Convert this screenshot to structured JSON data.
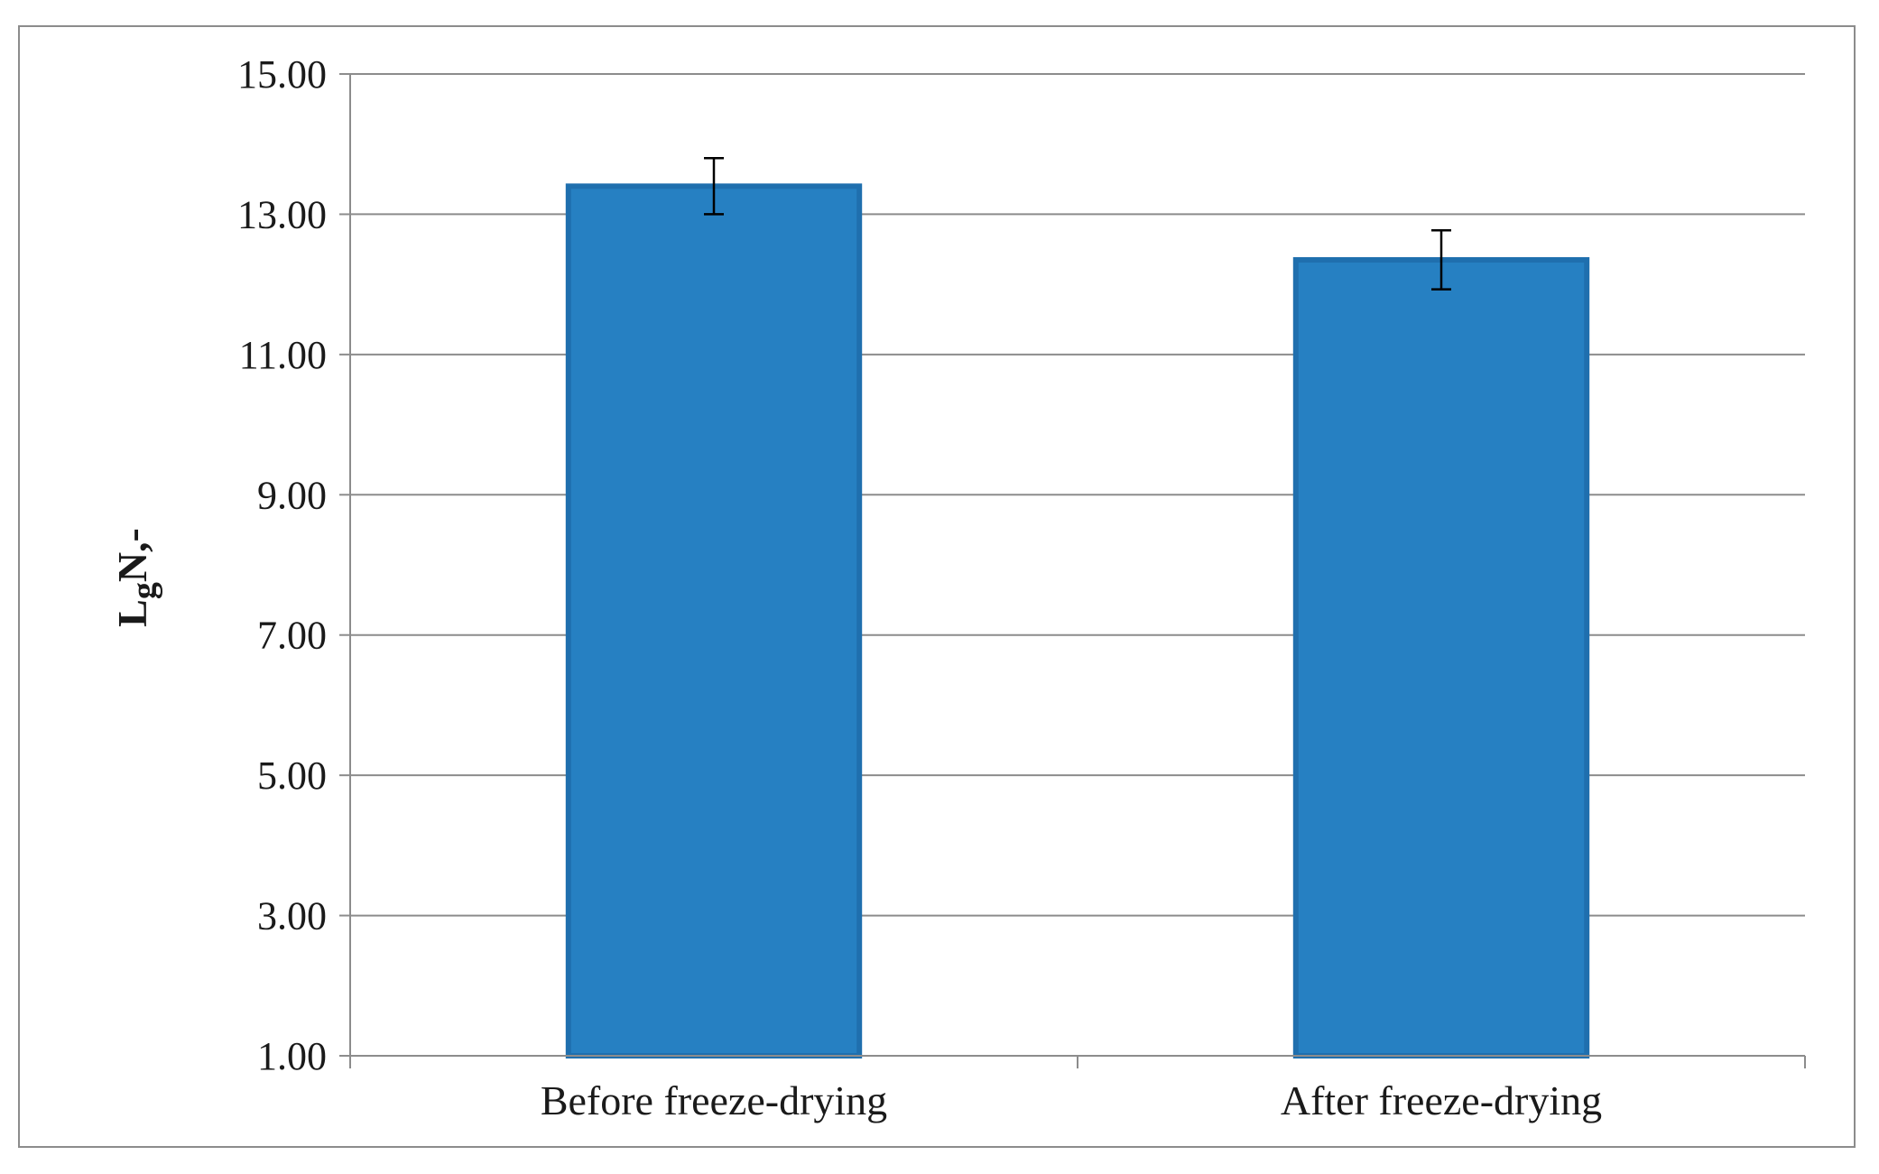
{
  "chart_data": {
    "type": "bar",
    "categories": [
      "Before freeze-drying",
      "After freeze-drying"
    ],
    "values": [
      13.4,
      12.35
    ],
    "errors": [
      0.4,
      0.42
    ],
    "title": "",
    "xlabel": "",
    "ylabel": "LgN,-",
    "ylabel_parts": {
      "main": "L",
      "sub": "g",
      "rest": "N,-"
    },
    "ylim": [
      1.0,
      15.0
    ],
    "yticks": [
      1.0,
      3.0,
      5.0,
      7.0,
      9.0,
      11.0,
      13.0,
      15.0
    ],
    "ytick_labels": [
      "1.00",
      "3.00",
      "5.00",
      "7.00",
      "9.00",
      "11.00",
      "13.00",
      "15.00"
    ],
    "grid": true,
    "bar_color": "#2680c2",
    "bar_edge_color": "#1f6fae",
    "grid_color": "#8c8c8c",
    "error_color": "#000000"
  }
}
